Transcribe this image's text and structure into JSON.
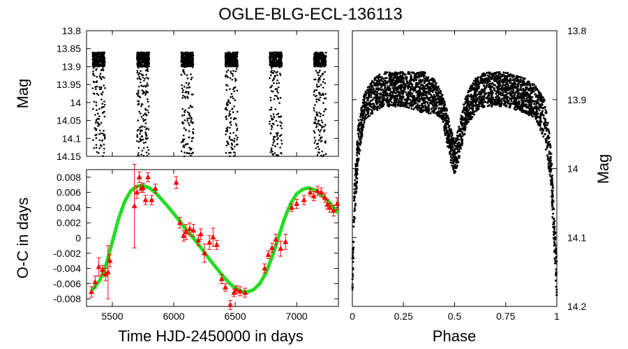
{
  "title": "OGLE-BLG-ECL-136113",
  "colors": {
    "axis": "#000000",
    "points": "#000000",
    "oc_points": "#ff0000",
    "fit": "#22dd22"
  },
  "chart_data": [
    {
      "name": "light-curve-time",
      "type": "scatter",
      "title": "",
      "xlabel": "",
      "ylabel": "Mag",
      "xlim": [
        5290,
        7340
      ],
      "ylim": [
        14.15,
        13.8
      ],
      "y_ticks": [
        "13.8",
        "13.85",
        "13.9",
        "13.95",
        "14",
        "14.05",
        "14.1",
        "14.15"
      ],
      "y_tick_values": [
        13.8,
        13.85,
        13.9,
        13.95,
        14.0,
        14.05,
        14.1,
        14.15
      ],
      "season_centers": [
        5390,
        5750,
        6110,
        6470,
        6830,
        7190
      ],
      "season_halfwidth": 50,
      "baseline_mag": 13.88,
      "eclipse_max_mag": 14.15
    },
    {
      "name": "o-c-diagram",
      "type": "scatter",
      "xlabel": "Time HJD-2450000 in days",
      "ylabel": "O-C in days",
      "xlim": [
        5290,
        7340
      ],
      "ylim": [
        -0.009,
        0.009
      ],
      "x_ticks": [
        "5500",
        "6000",
        "6500",
        "7000"
      ],
      "x_tick_values": [
        5500,
        6000,
        6500,
        7000
      ],
      "y_ticks": [
        "0.008",
        "0.006",
        "0.004",
        "0.002",
        "0",
        "-0.002",
        "-0.004",
        "-0.006",
        "-0.008"
      ],
      "y_tick_values": [
        0.008,
        0.006,
        0.004,
        0.002,
        0,
        -0.002,
        -0.004,
        -0.006,
        -0.008
      ],
      "series": [
        {
          "name": "O-C measurements",
          "x": [
            5330,
            5360,
            5390,
            5420,
            5445,
            5465,
            5480,
            5680,
            5700,
            5720,
            5735,
            5750,
            5770,
            5790,
            5820,
            5850,
            6020,
            6050,
            6080,
            6100,
            6130,
            6160,
            6200,
            6220,
            6250,
            6290,
            6320,
            6350,
            6390,
            6420,
            6460,
            6490,
            6510,
            6540,
            6580,
            6740,
            6770,
            6800,
            6830,
            6870,
            6910,
            6960,
            7000,
            7060,
            7110,
            7140,
            7170,
            7200,
            7230,
            7250,
            7270,
            7300,
            7330
          ],
          "y": [
            -0.0071,
            -0.0058,
            -0.0038,
            -0.0042,
            -0.0048,
            -0.0045,
            -0.003,
            0.0042,
            0.006,
            0.008,
            0.0065,
            0.0066,
            0.005,
            0.008,
            0.005,
            0.0065,
            0.0073,
            0.002,
            0.0003,
            0.0008,
            0.0012,
            0.001,
            -0.0003,
            0.0005,
            -0.002,
            -0.0006,
            0.0001,
            -0.0009,
            -0.0054,
            -0.0065,
            -0.0088,
            -0.0072,
            -0.0068,
            -0.007,
            -0.0072,
            -0.004,
            -0.0022,
            -0.0013,
            -0.0002,
            -0.0014,
            -0.0005,
            0.004,
            0.0045,
            0.005,
            0.006,
            0.0055,
            0.0062,
            0.006,
            0.0053,
            0.0044,
            0.004,
            0.0036,
            0.0045
          ],
          "err": [
            0.0007,
            0.0008,
            0.0012,
            0.0006,
            0.0008,
            0.0035,
            0.0008,
            0.0055,
            0.0008,
            0.0007,
            0.0005,
            0.0006,
            0.0006,
            0.0006,
            0.0006,
            0.0006,
            0.0008,
            0.0007,
            0.0007,
            0.001,
            0.0008,
            0.0008,
            0.0007,
            0.0007,
            0.0012,
            0.0009,
            0.0012,
            0.0006,
            0.0006,
            0.0005,
            0.0006,
            0.0005,
            0.0005,
            0.0006,
            0.0006,
            0.0006,
            0.0005,
            0.0006,
            0.0007,
            0.001,
            0.001,
            0.0005,
            0.0006,
            0.0006,
            0.0005,
            0.0006,
            0.0006,
            0.0006,
            0.0006,
            0.0006,
            0.0006,
            0.0007,
            0.0008
          ]
        },
        {
          "name": "LTTE fit",
          "x": [
            5330,
            5400,
            5450,
            5500,
            5550,
            5600,
            5650,
            5700,
            5750,
            5800,
            5850,
            5900,
            5950,
            6000,
            6050,
            6100,
            6150,
            6200,
            6250,
            6300,
            6350,
            6400,
            6450,
            6500,
            6550,
            6600,
            6650,
            6700,
            6750,
            6800,
            6850,
            6900,
            6950,
            7000,
            7050,
            7100,
            7150,
            7200,
            7250,
            7300,
            7340
          ],
          "y": [
            -0.007,
            -0.0055,
            -0.0035,
            -0.0005,
            0.0025,
            0.0048,
            0.0062,
            0.0068,
            0.0069,
            0.0066,
            0.006,
            0.0051,
            0.0042,
            0.0032,
            0.0022,
            0.0011,
            0.0002,
            -0.0008,
            -0.0019,
            -0.003,
            -0.004,
            -0.005,
            -0.0059,
            -0.0066,
            -0.007,
            -0.0071,
            -0.0068,
            -0.006,
            -0.0046,
            -0.0025,
            0.0,
            0.0025,
            0.0045,
            0.0058,
            0.0064,
            0.0066,
            0.0063,
            0.0057,
            0.005,
            0.004,
            0.0033
          ]
        }
      ]
    },
    {
      "name": "phased-light-curve",
      "type": "scatter",
      "xlabel": "Phase",
      "ylabel": "Mag",
      "xlim": [
        0,
        1
      ],
      "ylim": [
        14.2,
        13.8
      ],
      "x_ticks": [
        "0",
        "0.25",
        "0.5",
        "0.75",
        "1"
      ],
      "x_tick_values": [
        0,
        0.25,
        0.5,
        0.75,
        1
      ],
      "y_ticks": [
        "13.8",
        "13.9",
        "14",
        "14.1",
        "14.2"
      ],
      "y_tick_values": [
        13.8,
        13.9,
        14.0,
        14.1,
        14.2
      ],
      "series": [
        {
          "name": "phased envelope",
          "phase": [
            0.0,
            0.01,
            0.03,
            0.06,
            0.1,
            0.15,
            0.25,
            0.35,
            0.4,
            0.44,
            0.46,
            0.48,
            0.49,
            0.5,
            0.51,
            0.52,
            0.54,
            0.56,
            0.6,
            0.65,
            0.75,
            0.85,
            0.9,
            0.94,
            0.97,
            0.99,
            1.0
          ],
          "mag_bright": [
            14.13,
            14.02,
            13.93,
            13.89,
            13.87,
            13.86,
            13.86,
            13.86,
            13.87,
            13.89,
            13.91,
            13.94,
            13.95,
            13.96,
            13.95,
            13.94,
            13.91,
            13.89,
            13.87,
            13.86,
            13.86,
            13.87,
            13.88,
            13.9,
            13.96,
            14.08,
            14.13
          ],
          "mag_faint": [
            14.19,
            14.08,
            13.99,
            13.93,
            13.92,
            13.91,
            13.91,
            13.92,
            13.92,
            13.93,
            13.96,
            13.99,
            14.0,
            14.01,
            14.0,
            13.99,
            13.96,
            13.94,
            13.92,
            13.91,
            13.91,
            13.92,
            13.93,
            13.96,
            14.02,
            14.14,
            14.19
          ]
        }
      ]
    }
  ]
}
